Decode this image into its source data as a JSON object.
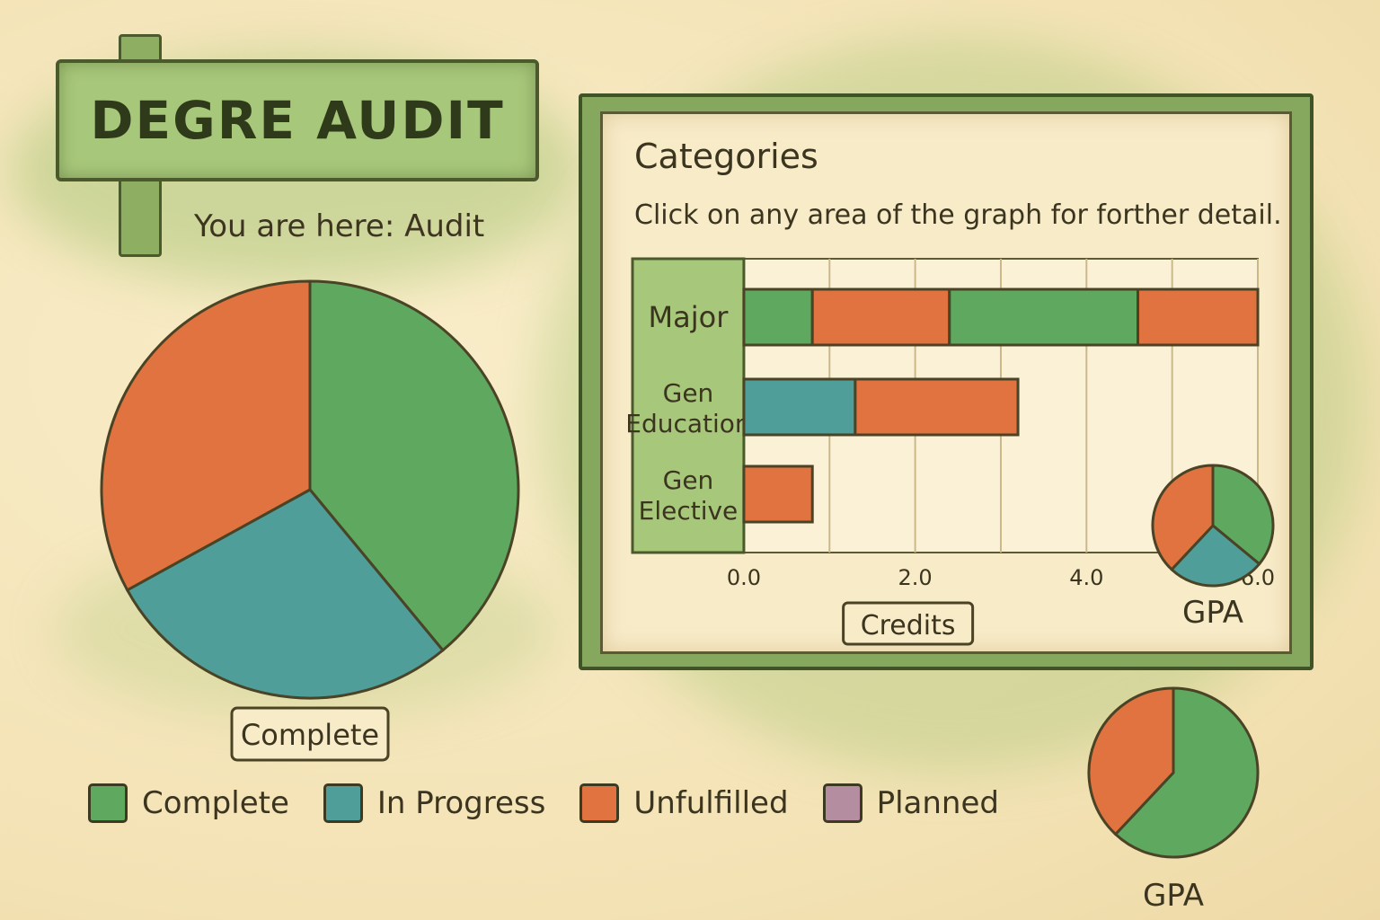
{
  "header": {
    "title": "DEGRE AUDIT",
    "breadcrumb": "You are here: Audit"
  },
  "colors": {
    "complete": "#5fa85f",
    "in_progress": "#4f9e9a",
    "unfulfilled": "#e0733f",
    "planned": "#b48ea0",
    "outline": "#4a4326"
  },
  "legend": [
    {
      "label": "Complete",
      "key": "complete"
    },
    {
      "label": "In Progress",
      "key": "in_progress"
    },
    {
      "label": "Unfulfilled",
      "key": "unfulfilled"
    },
    {
      "label": "Planned",
      "key": "planned"
    }
  ],
  "panel": {
    "title": "Categories",
    "subtitle": "Click on any area of the graph for forther detail."
  },
  "chart_data": [
    {
      "type": "pie",
      "label": "Complete",
      "slices": [
        {
          "name": "Complete",
          "value": 39
        },
        {
          "name": "In Progress",
          "value": 28
        },
        {
          "name": "Unfulfilled",
          "value": 33
        }
      ]
    },
    {
      "type": "bar",
      "orientation": "horizontal",
      "stacked": true,
      "categories": [
        "Major",
        "Gen Education",
        "Gen Elective"
      ],
      "category_lines": [
        [
          "Major"
        ],
        [
          "Gen",
          "Education"
        ],
        [
          "Gen",
          "Elective"
        ]
      ],
      "xlabel": "Credits",
      "xticks": [
        "0.0",
        "2.0",
        "4.0",
        "6.0"
      ],
      "xlim": [
        -1.3,
        6.0
      ],
      "segments": [
        [
          {
            "status": "complete",
            "value": 0.8
          },
          {
            "status": "unfulfilled",
            "value": 1.6
          },
          {
            "status": "complete",
            "value": 2.2
          },
          {
            "status": "unfulfilled",
            "value": 1.4
          }
        ],
        [
          {
            "status": "in_progress",
            "value": 1.3
          },
          {
            "status": "unfulfilled",
            "value": 1.9
          }
        ],
        [
          {
            "status": "unfulfilled",
            "value": 0.8
          }
        ]
      ]
    },
    {
      "type": "pie",
      "label": "GPA",
      "slices": [
        {
          "name": "Complete",
          "value": 36
        },
        {
          "name": "In Progress",
          "value": 26
        },
        {
          "name": "Unfulfilled",
          "value": 38
        }
      ]
    },
    {
      "type": "pie",
      "label": "GPA",
      "slices": [
        {
          "name": "Complete",
          "value": 62
        },
        {
          "name": "Unfulfilled",
          "value": 38
        }
      ]
    }
  ]
}
